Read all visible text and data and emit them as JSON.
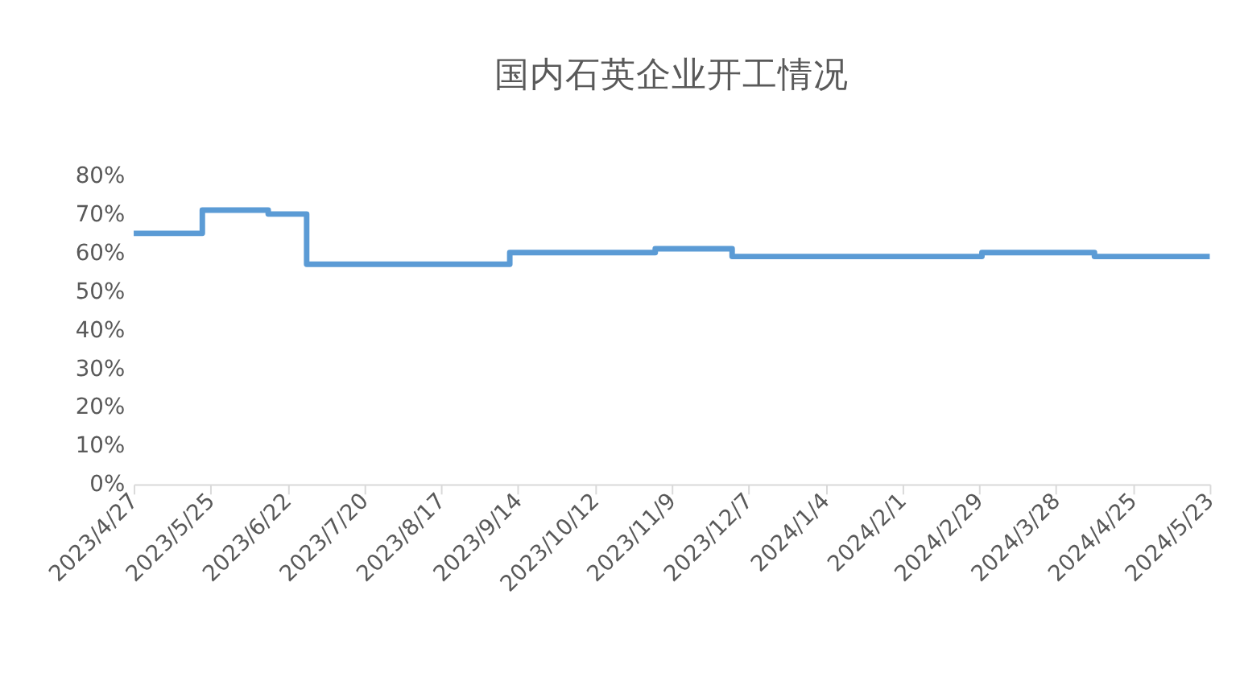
{
  "chart_data": {
    "type": "step",
    "title": "国内石英企业开工情况",
    "x": [
      "2023-04-27",
      "2023-05-22",
      "2023-06-15",
      "2023-06-29",
      "2023-09-11",
      "2023-11-03",
      "2023-12-01",
      "2024-03-01",
      "2024-04-11",
      "2024-05-23"
    ],
    "series": [
      {
        "color": "#5b9bd5",
        "values": [
          65,
          71,
          70,
          57,
          60,
          61,
          59,
          60,
          59,
          59
        ]
      }
    ],
    "xlim": [
      "2023-04-27",
      "2024-05-23"
    ],
    "xticks": [
      {
        "value": "2023-04-27",
        "label": "2023/4/27"
      },
      {
        "value": "2023-05-25",
        "label": "2023/5/25"
      },
      {
        "value": "2023-06-22",
        "label": "2023/6/22"
      },
      {
        "value": "2023-07-20",
        "label": "2023/7/20"
      },
      {
        "value": "2023-08-17",
        "label": "2023/8/17"
      },
      {
        "value": "2023-09-14",
        "label": "2023/9/14"
      },
      {
        "value": "2023-10-12",
        "label": "2023/10/12"
      },
      {
        "value": "2023-11-09",
        "label": "2023/11/9"
      },
      {
        "value": "2023-12-07",
        "label": "2023/12/7"
      },
      {
        "value": "2024-01-04",
        "label": "2024/1/4"
      },
      {
        "value": "2024-02-01",
        "label": "2024/2/1"
      },
      {
        "value": "2024-02-29",
        "label": "2024/2/29"
      },
      {
        "value": "2024-03-28",
        "label": "2024/3/28"
      },
      {
        "value": "2024-04-25",
        "label": "2024/4/25"
      },
      {
        "value": "2024-05-23",
        "label": "2024/5/23"
      }
    ],
    "ylim": [
      0,
      80
    ],
    "yticks": [
      {
        "value": 0,
        "label": "0%"
      },
      {
        "value": 10,
        "label": "10%"
      },
      {
        "value": 20,
        "label": "20%"
      },
      {
        "value": 30,
        "label": "30%"
      },
      {
        "value": 40,
        "label": "40%"
      },
      {
        "value": 50,
        "label": "50%"
      },
      {
        "value": 60,
        "label": "60%"
      },
      {
        "value": 70,
        "label": "70%"
      },
      {
        "value": 80,
        "label": "80%"
      }
    ],
    "grid": false,
    "marker": "none",
    "line_style": "solid"
  }
}
